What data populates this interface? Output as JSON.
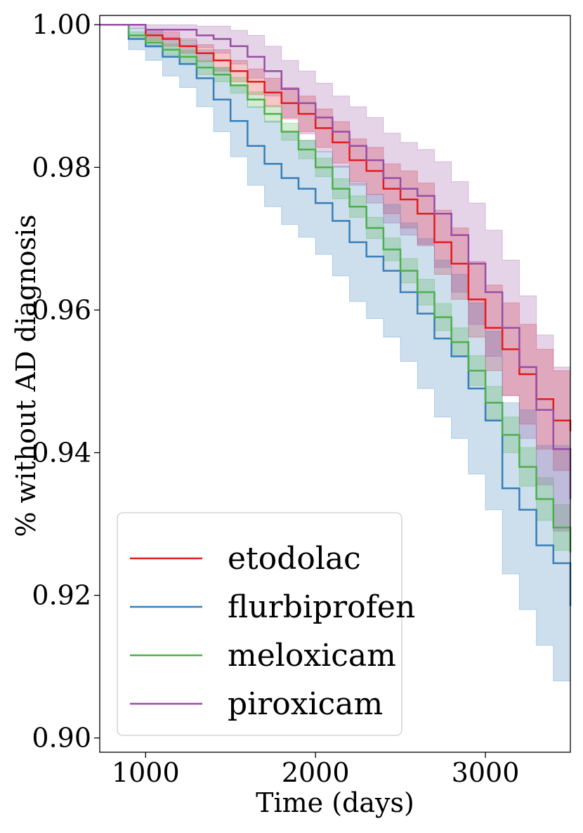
{
  "chart_data": {
    "type": "line",
    "title": "",
    "xlabel": "Time (days)",
    "ylabel": "% without AD diagnosis",
    "xlim": [
      730,
      3500
    ],
    "ylim": [
      0.898,
      1.0013
    ],
    "xticks": [
      1000,
      2000,
      3000
    ],
    "xtick_labels": [
      "1000",
      "2000",
      "3000"
    ],
    "yticks": [
      0.9,
      0.92,
      0.94,
      0.96,
      0.98,
      1.0
    ],
    "ytick_labels": [
      "0.90",
      "0.92",
      "0.94",
      "0.96",
      "0.98",
      "1.00"
    ],
    "grid": false,
    "legend_position": "lower-left",
    "step": true,
    "series": [
      {
        "name": "etodolac",
        "color": "#e41a1c",
        "x": [
          730,
          900,
          1000,
          1100,
          1200,
          1300,
          1400,
          1500,
          1600,
          1700,
          1800,
          1900,
          2000,
          2100,
          2200,
          2300,
          2400,
          2500,
          2600,
          2700,
          2800,
          2900,
          3000,
          3100,
          3200,
          3300,
          3400,
          3500
        ],
        "y": [
          1.0,
          1.0,
          0.9985,
          0.998,
          0.997,
          0.996,
          0.995,
          0.9935,
          0.992,
          0.9905,
          0.989,
          0.9875,
          0.9855,
          0.9835,
          0.981,
          0.9795,
          0.977,
          0.9755,
          0.9735,
          0.9695,
          0.9665,
          0.9615,
          0.9575,
          0.9545,
          0.951,
          0.9475,
          0.9445,
          0.943
        ],
        "ci_lower": [
          1.0,
          1.0,
          0.9978,
          0.997,
          0.996,
          0.9948,
          0.9935,
          0.992,
          0.9902,
          0.9885,
          0.9868,
          0.985,
          0.9828,
          0.9806,
          0.978,
          0.9762,
          0.9735,
          0.9715,
          0.9692,
          0.965,
          0.9615,
          0.9562,
          0.9515,
          0.948,
          0.944,
          0.9405,
          0.9375,
          0.937
        ],
        "ci_upper": [
          1.0,
          1.0,
          0.9992,
          0.999,
          0.998,
          0.9972,
          0.9965,
          0.995,
          0.9938,
          0.9925,
          0.9912,
          0.99,
          0.9882,
          0.9864,
          0.984,
          0.9828,
          0.9805,
          0.9795,
          0.9778,
          0.974,
          0.9715,
          0.9668,
          0.9635,
          0.961,
          0.958,
          0.9545,
          0.9515,
          0.949
        ]
      },
      {
        "name": "flurbiprofen",
        "color": "#377eb8",
        "x": [
          730,
          900,
          1000,
          1100,
          1200,
          1300,
          1400,
          1500,
          1600,
          1700,
          1800,
          1900,
          2000,
          2100,
          2200,
          2300,
          2400,
          2500,
          2600,
          2700,
          2800,
          2900,
          3000,
          3100,
          3200,
          3300,
          3400,
          3500
        ],
        "y": [
          1.0,
          0.998,
          0.997,
          0.9955,
          0.9945,
          0.9925,
          0.9895,
          0.9865,
          0.983,
          0.9805,
          0.9785,
          0.977,
          0.975,
          0.9725,
          0.9695,
          0.9675,
          0.9655,
          0.9625,
          0.9595,
          0.956,
          0.9535,
          0.949,
          0.9445,
          0.935,
          0.932,
          0.927,
          0.9245,
          0.9185
        ],
        "ci_lower": [
          1.0,
          0.9965,
          0.995,
          0.9928,
          0.9912,
          0.9885,
          0.985,
          0.9815,
          0.9775,
          0.9745,
          0.972,
          0.9702,
          0.9678,
          0.9648,
          0.9612,
          0.9588,
          0.9562,
          0.9528,
          0.949,
          0.945,
          0.942,
          0.937,
          0.932,
          0.923,
          0.918,
          0.913,
          0.908,
          0.9005
        ],
        "ci_upper": [
          1.0,
          0.9995,
          0.999,
          0.9982,
          0.9978,
          0.9965,
          0.994,
          0.9915,
          0.9885,
          0.9865,
          0.985,
          0.9838,
          0.9822,
          0.9802,
          0.9778,
          0.9762,
          0.9748,
          0.9722,
          0.97,
          0.967,
          0.965,
          0.961,
          0.957,
          0.947,
          0.946,
          0.941,
          0.941,
          0.936
        ]
      },
      {
        "name": "meloxicam",
        "color": "#4daf4a",
        "x": [
          730,
          900,
          1000,
          1100,
          1200,
          1300,
          1400,
          1500,
          1600,
          1700,
          1800,
          1900,
          2000,
          2100,
          2200,
          2300,
          2400,
          2500,
          2600,
          2700,
          2800,
          2900,
          3000,
          3100,
          3200,
          3300,
          3400,
          3500
        ],
        "y": [
          1.0,
          0.9985,
          0.9975,
          0.9965,
          0.9955,
          0.994,
          0.993,
          0.9915,
          0.9895,
          0.9875,
          0.985,
          0.9825,
          0.98,
          0.977,
          0.9745,
          0.9715,
          0.9685,
          0.9655,
          0.9625,
          0.959,
          0.9555,
          0.9515,
          0.947,
          0.9425,
          0.938,
          0.9335,
          0.9295,
          0.926
        ],
        "ci_lower": [
          1.0,
          0.998,
          0.9968,
          0.9957,
          0.9946,
          0.993,
          0.992,
          0.9904,
          0.9884,
          0.9863,
          0.9838,
          0.9812,
          0.9787,
          0.9756,
          0.973,
          0.97,
          0.9669,
          0.9638,
          0.9607,
          0.9571,
          0.9535,
          0.9494,
          0.9447,
          0.94,
          0.9353,
          0.9305,
          0.9263,
          0.9225
        ],
        "ci_upper": [
          1.0,
          0.999,
          0.9982,
          0.9973,
          0.9964,
          0.995,
          0.994,
          0.9926,
          0.9906,
          0.9887,
          0.9862,
          0.9838,
          0.9813,
          0.9784,
          0.976,
          0.973,
          0.9701,
          0.9672,
          0.9643,
          0.9609,
          0.9575,
          0.9536,
          0.9493,
          0.945,
          0.9407,
          0.9365,
          0.9327,
          0.9295
        ]
      },
      {
        "name": "piroxicam",
        "color": "#984ea3",
        "x": [
          730,
          900,
          1000,
          1100,
          1200,
          1300,
          1400,
          1500,
          1600,
          1700,
          1800,
          1900,
          2000,
          2100,
          2200,
          2300,
          2400,
          2500,
          2600,
          2700,
          2800,
          2900,
          3000,
          3100,
          3200,
          3300,
          3400,
          3500
        ],
        "y": [
          1.0,
          1.0,
          0.9993,
          0.9993,
          0.9993,
          0.9985,
          0.998,
          0.997,
          0.9955,
          0.9935,
          0.991,
          0.989,
          0.987,
          0.985,
          0.983,
          0.981,
          0.9785,
          0.977,
          0.976,
          0.9735,
          0.9705,
          0.9665,
          0.9625,
          0.9575,
          0.952,
          0.946,
          0.9405,
          0.9335
        ],
        "ci_lower": [
          1.0,
          0.9995,
          0.9985,
          0.9982,
          0.998,
          0.9968,
          0.996,
          0.9945,
          0.9925,
          0.99,
          0.987,
          0.9847,
          0.9822,
          0.98,
          0.9775,
          0.975,
          0.9722,
          0.9705,
          0.969,
          0.966,
          0.9625,
          0.958,
          0.9535,
          0.948,
          0.942,
          0.9355,
          0.929,
          0.921
        ],
        "ci_upper": [
          1.0,
          1.0,
          1.0,
          1.0,
          1.0,
          0.9998,
          0.9998,
          0.9992,
          0.9985,
          0.997,
          0.995,
          0.9935,
          0.9918,
          0.99,
          0.9885,
          0.987,
          0.9848,
          0.9835,
          0.9825,
          0.9808,
          0.978,
          0.975,
          0.9712,
          0.967,
          0.962,
          0.9565,
          0.952,
          0.946
        ]
      }
    ]
  }
}
